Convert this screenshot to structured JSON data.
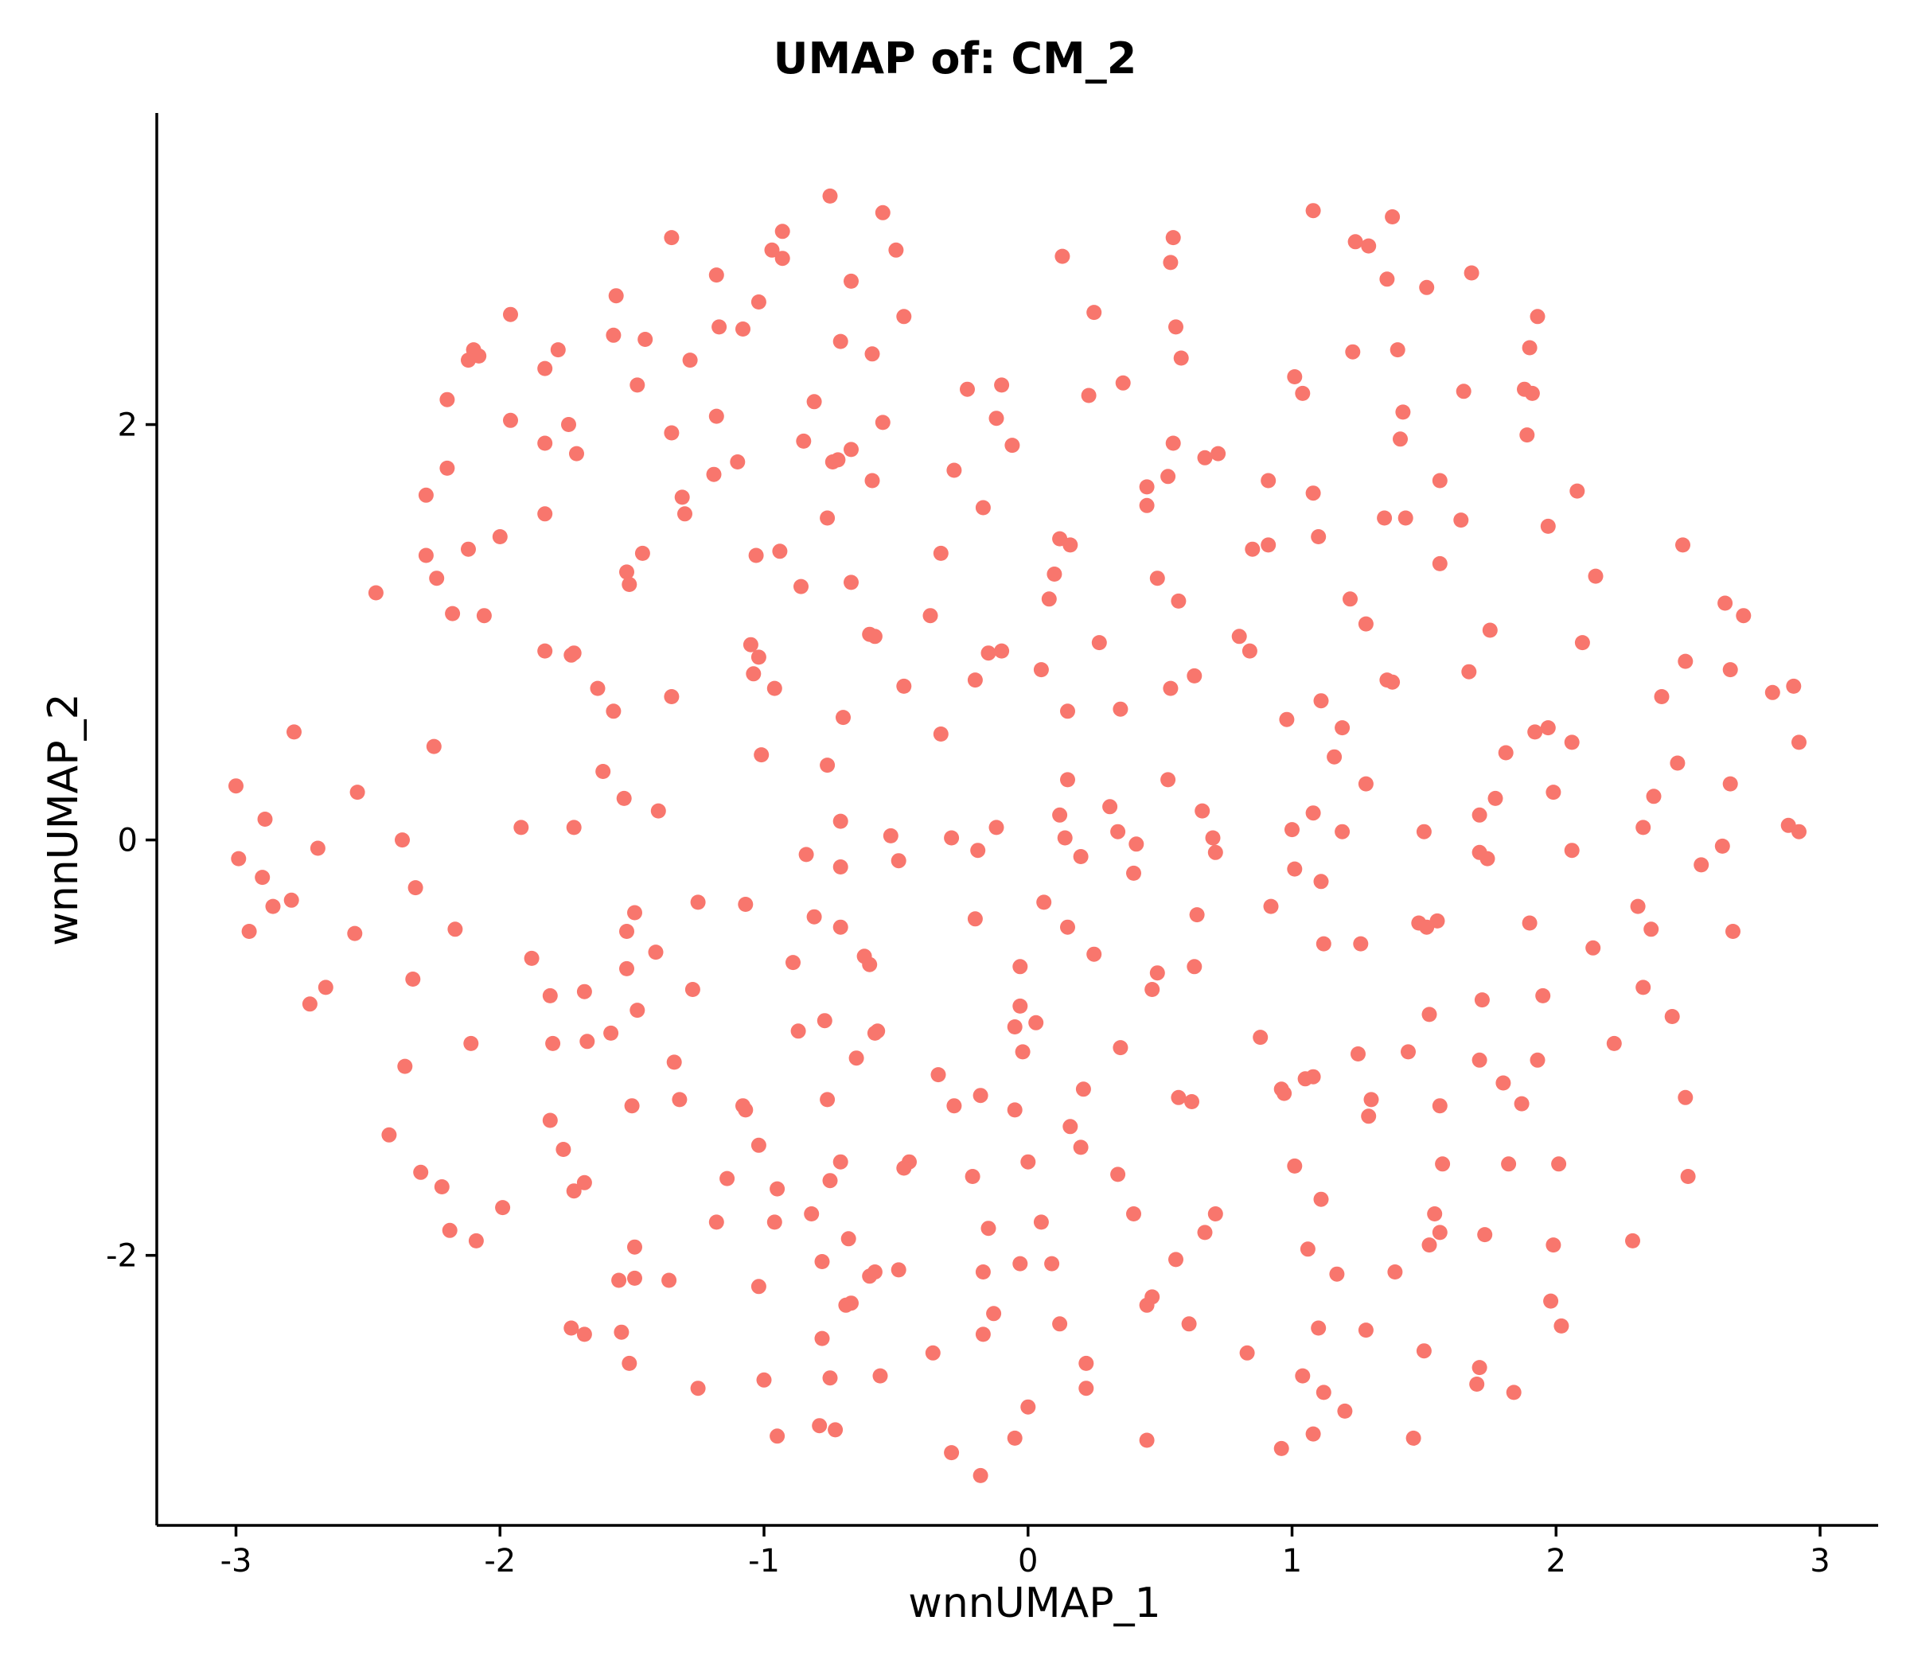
{
  "chart_data": {
    "type": "scatter",
    "title": "UMAP of: CM_2",
    "xlabel": "wnnUMAP_1",
    "ylabel": "wnnUMAP_2",
    "xlim": [
      -3.3,
      3.22
    ],
    "ylim": [
      -3.3,
      3.5
    ],
    "xticks": [
      -3,
      -2,
      -1,
      0,
      1,
      2,
      3
    ],
    "yticks": [
      -2,
      0,
      2
    ],
    "point_color": "#F8766D",
    "grid": false,
    "legend": "none",
    "points": [
      [
        -0.75,
        3.1
      ],
      [
        -0.55,
        3.02
      ],
      [
        1.08,
        3.03
      ],
      [
        1.38,
        3.0
      ],
      [
        -0.93,
        2.93
      ],
      [
        -1.35,
        2.9
      ],
      [
        0.55,
        2.9
      ],
      [
        -0.97,
        2.84
      ],
      [
        -0.5,
        2.84
      ],
      [
        1.24,
        2.88
      ],
      [
        1.29,
        2.86
      ],
      [
        0.13,
        2.81
      ],
      [
        -0.93,
        2.8
      ],
      [
        0.54,
        2.78
      ],
      [
        1.68,
        2.73
      ],
      [
        -1.18,
        2.72
      ],
      [
        1.36,
        2.7
      ],
      [
        -0.67,
        2.69
      ],
      [
        1.51,
        2.66
      ],
      [
        -1.56,
        2.62
      ],
      [
        -1.02,
        2.59
      ],
      [
        0.25,
        2.54
      ],
      [
        -0.47,
        2.52
      ],
      [
        -1.96,
        2.53
      ],
      [
        1.93,
        2.52
      ],
      [
        -1.17,
        2.47
      ],
      [
        -1.08,
        2.46
      ],
      [
        0.56,
        2.47
      ],
      [
        -1.57,
        2.43
      ],
      [
        -1.45,
        2.41
      ],
      [
        -0.71,
        2.4
      ],
      [
        1.9,
        2.37
      ],
      [
        -1.78,
        2.36
      ],
      [
        -2.1,
        2.36
      ],
      [
        1.23,
        2.35
      ],
      [
        1.4,
        2.36
      ],
      [
        -0.59,
        2.34
      ],
      [
        -2.08,
        2.33
      ],
      [
        -2.12,
        2.31
      ],
      [
        0.58,
        2.32
      ],
      [
        -1.28,
        2.31
      ],
      [
        -1.83,
        2.27
      ],
      [
        0.36,
        2.2
      ],
      [
        1.01,
        2.23
      ],
      [
        -1.48,
        2.19
      ],
      [
        -0.1,
        2.19
      ],
      [
        -0.23,
        2.17
      ],
      [
        1.65,
        2.16
      ],
      [
        1.88,
        2.17
      ],
      [
        1.04,
        2.15
      ],
      [
        0.23,
        2.14
      ],
      [
        1.91,
        2.15
      ],
      [
        -2.2,
        2.12
      ],
      [
        -0.81,
        2.11
      ],
      [
        1.42,
        2.06
      ],
      [
        -1.18,
        2.04
      ],
      [
        -0.12,
        2.03
      ],
      [
        -1.96,
        2.02
      ],
      [
        -0.55,
        2.01
      ],
      [
        -1.74,
        2.0
      ],
      [
        -1.35,
        1.96
      ],
      [
        1.89,
        1.95
      ],
      [
        1.41,
        1.93
      ],
      [
        -1.83,
        1.91
      ],
      [
        -0.85,
        1.92
      ],
      [
        0.55,
        1.91
      ],
      [
        -0.06,
        1.9
      ],
      [
        -0.67,
        1.88
      ],
      [
        -1.71,
        1.86
      ],
      [
        0.72,
        1.86
      ],
      [
        0.67,
        1.84
      ],
      [
        -0.72,
        1.83
      ],
      [
        -0.74,
        1.82
      ],
      [
        -1.1,
        1.82
      ],
      [
        -2.2,
        1.79
      ],
      [
        -0.28,
        1.78
      ],
      [
        -1.19,
        1.76
      ],
      [
        0.53,
        1.75
      ],
      [
        -0.59,
        1.73
      ],
      [
        0.91,
        1.73
      ],
      [
        1.56,
        1.73
      ],
      [
        0.45,
        1.7
      ],
      [
        1.08,
        1.67
      ],
      [
        2.08,
        1.68
      ],
      [
        -2.28,
        1.66
      ],
      [
        -1.31,
        1.65
      ],
      [
        0.45,
        1.61
      ],
      [
        -0.17,
        1.6
      ],
      [
        -1.83,
        1.57
      ],
      [
        -1.3,
        1.57
      ],
      [
        -0.76,
        1.55
      ],
      [
        1.35,
        1.55
      ],
      [
        1.43,
        1.55
      ],
      [
        1.64,
        1.54
      ],
      [
        1.97,
        1.51
      ],
      [
        -2.0,
        1.46
      ],
      [
        1.1,
        1.46
      ],
      [
        0.12,
        1.45
      ],
      [
        0.16,
        1.42
      ],
      [
        0.91,
        1.42
      ],
      [
        2.48,
        1.42
      ],
      [
        0.85,
        1.4
      ],
      [
        -2.12,
        1.4
      ],
      [
        -0.94,
        1.39
      ],
      [
        -1.46,
        1.38
      ],
      [
        -2.28,
        1.37
      ],
      [
        -1.03,
        1.37
      ],
      [
        -0.33,
        1.38
      ],
      [
        1.56,
        1.33
      ],
      [
        -1.52,
        1.29
      ],
      [
        -2.24,
        1.26
      ],
      [
        0.1,
        1.28
      ],
      [
        0.49,
        1.26
      ],
      [
        -0.67,
        1.24
      ],
      [
        2.15,
        1.27
      ],
      [
        -1.51,
        1.23
      ],
      [
        -0.86,
        1.22
      ],
      [
        -2.47,
        1.19
      ],
      [
        1.22,
        1.16
      ],
      [
        0.08,
        1.16
      ],
      [
        0.57,
        1.15
      ],
      [
        2.64,
        1.14
      ],
      [
        -2.18,
        1.09
      ],
      [
        -2.06,
        1.08
      ],
      [
        -0.37,
        1.08
      ],
      [
        2.71,
        1.08
      ],
      [
        1.28,
        1.04
      ],
      [
        1.75,
        1.01
      ],
      [
        -0.6,
        0.99
      ],
      [
        -0.58,
        0.98
      ],
      [
        0.8,
        0.98
      ],
      [
        2.1,
        0.95
      ],
      [
        0.27,
        0.95
      ],
      [
        -1.05,
        0.94
      ],
      [
        -1.83,
        0.91
      ],
      [
        0.84,
        0.91
      ],
      [
        -1.72,
        0.9
      ],
      [
        -0.1,
        0.91
      ],
      [
        -0.15,
        0.9
      ],
      [
        -1.73,
        0.89
      ],
      [
        -1.02,
        0.88
      ],
      [
        2.49,
        0.86
      ],
      [
        0.05,
        0.82
      ],
      [
        2.66,
        0.82
      ],
      [
        -1.04,
        0.8
      ],
      [
        0.63,
        0.79
      ],
      [
        1.67,
        0.81
      ],
      [
        -0.2,
        0.77
      ],
      [
        1.36,
        0.77
      ],
      [
        1.38,
        0.76
      ],
      [
        -1.63,
        0.73
      ],
      [
        -0.96,
        0.73
      ],
      [
        -0.47,
        0.74
      ],
      [
        0.54,
        0.73
      ],
      [
        2.9,
        0.74
      ],
      [
        2.82,
        0.71
      ],
      [
        2.4,
        0.69
      ],
      [
        -1.35,
        0.69
      ],
      [
        1.11,
        0.67
      ],
      [
        -1.57,
        0.62
      ],
      [
        0.15,
        0.62
      ],
      [
        0.35,
        0.63
      ],
      [
        -0.7,
        0.59
      ],
      [
        0.98,
        0.58
      ],
      [
        1.19,
        0.54
      ],
      [
        1.97,
        0.54
      ],
      [
        1.92,
        0.52
      ],
      [
        -2.78,
        0.52
      ],
      [
        -0.33,
        0.51
      ],
      [
        2.06,
        0.47
      ],
      [
        2.92,
        0.47
      ],
      [
        -2.25,
        0.45
      ],
      [
        1.81,
        0.42
      ],
      [
        1.16,
        0.4
      ],
      [
        -1.01,
        0.41
      ],
      [
        -0.76,
        0.36
      ],
      [
        2.46,
        0.37
      ],
      [
        -1.61,
        0.33
      ],
      [
        0.15,
        0.29
      ],
      [
        0.53,
        0.29
      ],
      [
        1.28,
        0.27
      ],
      [
        2.66,
        0.27
      ],
      [
        -3.0,
        0.26
      ],
      [
        -2.54,
        0.23
      ],
      [
        1.99,
        0.23
      ],
      [
        -1.53,
        0.2
      ],
      [
        2.37,
        0.21
      ],
      [
        1.77,
        0.2
      ],
      [
        0.31,
        0.16
      ],
      [
        0.66,
        0.14
      ],
      [
        -1.4,
        0.14
      ],
      [
        1.08,
        0.13
      ],
      [
        0.12,
        0.12
      ],
      [
        1.71,
        0.12
      ],
      [
        -2.89,
        0.1
      ],
      [
        -0.71,
        0.09
      ],
      [
        -1.92,
        0.06
      ],
      [
        -1.72,
        0.06
      ],
      [
        1.0,
        0.05
      ],
      [
        -0.12,
        0.06
      ],
      [
        2.33,
        0.06
      ],
      [
        2.88,
        0.07
      ],
      [
        2.92,
        0.04
      ],
      [
        0.34,
        0.04
      ],
      [
        1.19,
        0.04
      ],
      [
        1.5,
        0.04
      ],
      [
        -0.52,
        0.02
      ],
      [
        -0.29,
        0.01
      ],
      [
        0.14,
        0.01
      ],
      [
        0.7,
        0.01
      ],
      [
        -2.37,
        0.0
      ],
      [
        0.41,
        -0.02
      ],
      [
        -2.69,
        -0.04
      ],
      [
        -0.19,
        -0.05
      ],
      [
        1.71,
        -0.06
      ],
      [
        2.06,
        -0.05
      ],
      [
        0.71,
        -0.06
      ],
      [
        -0.84,
        -0.07
      ],
      [
        0.2,
        -0.08
      ],
      [
        -2.99,
        -0.09
      ],
      [
        1.74,
        -0.09
      ],
      [
        -0.49,
        -0.1
      ],
      [
        2.55,
        -0.12
      ],
      [
        2.63,
        -0.03
      ],
      [
        1.01,
        -0.14
      ],
      [
        -0.71,
        -0.13
      ],
      [
        0.4,
        -0.16
      ],
      [
        -2.9,
        -0.18
      ],
      [
        1.11,
        -0.2
      ],
      [
        -2.32,
        -0.23
      ],
      [
        -2.79,
        -0.29
      ],
      [
        -1.25,
        -0.3
      ],
      [
        -1.07,
        -0.31
      ],
      [
        0.06,
        -0.3
      ],
      [
        -2.86,
        -0.32
      ],
      [
        2.31,
        -0.32
      ],
      [
        0.92,
        -0.32
      ],
      [
        -1.49,
        -0.35
      ],
      [
        -0.81,
        -0.37
      ],
      [
        0.64,
        -0.36
      ],
      [
        -0.2,
        -0.38
      ],
      [
        1.55,
        -0.39
      ],
      [
        1.48,
        -0.4
      ],
      [
        1.9,
        -0.4
      ],
      [
        -0.71,
        -0.42
      ],
      [
        1.51,
        -0.42
      ],
      [
        -2.95,
        -0.44
      ],
      [
        -2.17,
        -0.43
      ],
      [
        0.15,
        -0.42
      ],
      [
        -1.52,
        -0.44
      ],
      [
        2.36,
        -0.43
      ],
      [
        2.67,
        -0.44
      ],
      [
        -2.55,
        -0.45
      ],
      [
        1.12,
        -0.5
      ],
      [
        1.26,
        -0.5
      ],
      [
        2.14,
        -0.52
      ],
      [
        -1.41,
        -0.54
      ],
      [
        0.25,
        -0.55
      ],
      [
        -0.62,
        -0.56
      ],
      [
        -1.88,
        -0.57
      ],
      [
        -0.89,
        -0.59
      ],
      [
        -0.6,
        -0.6
      ],
      [
        -1.52,
        -0.62
      ],
      [
        -0.03,
        -0.61
      ],
      [
        0.63,
        -0.61
      ],
      [
        0.49,
        -0.64
      ],
      [
        -2.33,
        -0.67
      ],
      [
        -2.66,
        -0.71
      ],
      [
        -1.27,
        -0.72
      ],
      [
        -1.68,
        -0.73
      ],
      [
        0.47,
        -0.72
      ],
      [
        2.33,
        -0.71
      ],
      [
        -1.81,
        -0.75
      ],
      [
        1.95,
        -0.75
      ],
      [
        -2.72,
        -0.79
      ],
      [
        -0.03,
        -0.8
      ],
      [
        1.72,
        -0.77
      ],
      [
        -1.48,
        -0.82
      ],
      [
        1.52,
        -0.84
      ],
      [
        2.44,
        -0.85
      ],
      [
        -0.77,
        -0.87
      ],
      [
        0.03,
        -0.88
      ],
      [
        -0.05,
        -0.9
      ],
      [
        -0.87,
        -0.92
      ],
      [
        -0.57,
        -0.92
      ],
      [
        -0.58,
        -0.93
      ],
      [
        -1.58,
        -0.93
      ],
      [
        0.88,
        -0.95
      ],
      [
        -1.67,
        -0.97
      ],
      [
        -2.11,
        -0.98
      ],
      [
        -1.8,
        -0.98
      ],
      [
        2.22,
        -0.98
      ],
      [
        0.35,
        -1.0
      ],
      [
        -0.02,
        -1.02
      ],
      [
        1.44,
        -1.02
      ],
      [
        1.25,
        -1.03
      ],
      [
        -0.65,
        -1.05
      ],
      [
        1.71,
        -1.06
      ],
      [
        1.93,
        -1.06
      ],
      [
        -1.34,
        -1.07
      ],
      [
        -2.36,
        -1.09
      ],
      [
        -0.34,
        -1.13
      ],
      [
        1.05,
        -1.15
      ],
      [
        1.08,
        -1.14
      ],
      [
        1.8,
        -1.17
      ],
      [
        0.21,
        -1.2
      ],
      [
        0.96,
        -1.2
      ],
      [
        0.97,
        -1.22
      ],
      [
        -0.18,
        -1.23
      ],
      [
        0.57,
        -1.24
      ],
      [
        0.62,
        -1.26
      ],
      [
        -1.32,
        -1.25
      ],
      [
        -0.76,
        -1.25
      ],
      [
        1.87,
        -1.27
      ],
      [
        2.49,
        -1.24
      ],
      [
        1.3,
        -1.25
      ],
      [
        -1.07,
        -1.3
      ],
      [
        -1.08,
        -1.28
      ],
      [
        -1.5,
        -1.28
      ],
      [
        -0.28,
        -1.28
      ],
      [
        1.56,
        -1.28
      ],
      [
        -0.05,
        -1.3
      ],
      [
        1.29,
        -1.33
      ],
      [
        -1.81,
        -1.35
      ],
      [
        0.16,
        -1.38
      ],
      [
        -2.42,
        -1.42
      ],
      [
        -1.02,
        -1.47
      ],
      [
        0.2,
        -1.48
      ],
      [
        -1.76,
        -1.49
      ],
      [
        -0.71,
        -1.55
      ],
      [
        -0.45,
        -1.55
      ],
      [
        0.0,
        -1.55
      ],
      [
        1.57,
        -1.56
      ],
      [
        1.82,
        -1.56
      ],
      [
        2.01,
        -1.56
      ],
      [
        1.01,
        -1.57
      ],
      [
        -2.3,
        -1.6
      ],
      [
        -0.47,
        -1.58
      ],
      [
        0.34,
        -1.61
      ],
      [
        2.5,
        -1.62
      ],
      [
        -0.21,
        -1.62
      ],
      [
        -1.14,
        -1.63
      ],
      [
        -0.75,
        -1.64
      ],
      [
        -1.68,
        -1.65
      ],
      [
        -2.22,
        -1.67
      ],
      [
        -0.95,
        -1.68
      ],
      [
        -1.72,
        -1.69
      ],
      [
        1.11,
        -1.73
      ],
      [
        -1.99,
        -1.77
      ],
      [
        -0.82,
        -1.8
      ],
      [
        1.54,
        -1.8
      ],
      [
        0.4,
        -1.8
      ],
      [
        0.71,
        -1.8
      ],
      [
        -1.18,
        -1.84
      ],
      [
        -0.96,
        -1.84
      ],
      [
        0.05,
        -1.84
      ],
      [
        1.56,
        -1.89
      ],
      [
        1.73,
        -1.9
      ],
      [
        -0.15,
        -1.87
      ],
      [
        -2.19,
        -1.88
      ],
      [
        0.67,
        -1.89
      ],
      [
        -0.68,
        -1.92
      ],
      [
        -2.09,
        -1.93
      ],
      [
        2.29,
        -1.93
      ],
      [
        -1.49,
        -1.96
      ],
      [
        1.52,
        -1.95
      ],
      [
        1.99,
        -1.95
      ],
      [
        1.06,
        -1.97
      ],
      [
        0.56,
        -2.02
      ],
      [
        -0.78,
        -2.03
      ],
      [
        -0.03,
        -2.04
      ],
      [
        0.09,
        -2.04
      ],
      [
        -0.58,
        -2.08
      ],
      [
        -0.49,
        -2.07
      ],
      [
        -0.17,
        -2.08
      ],
      [
        1.39,
        -2.08
      ],
      [
        1.17,
        -2.09
      ],
      [
        -1.49,
        -2.11
      ],
      [
        -1.55,
        -2.12
      ],
      [
        -1.36,
        -2.12
      ],
      [
        -0.6,
        -2.1
      ],
      [
        -1.02,
        -2.15
      ],
      [
        0.47,
        -2.2
      ],
      [
        0.45,
        -2.24
      ],
      [
        -0.69,
        -2.24
      ],
      [
        -0.67,
        -2.23
      ],
      [
        1.98,
        -2.22
      ],
      [
        -0.13,
        -2.28
      ],
      [
        0.12,
        -2.33
      ],
      [
        0.61,
        -2.33
      ],
      [
        1.1,
        -2.35
      ],
      [
        -1.73,
        -2.35
      ],
      [
        1.28,
        -2.36
      ],
      [
        2.02,
        -2.34
      ],
      [
        -1.54,
        -2.37
      ],
      [
        -1.68,
        -2.38
      ],
      [
        -0.17,
        -2.38
      ],
      [
        -0.78,
        -2.4
      ],
      [
        -0.36,
        -2.47
      ],
      [
        0.83,
        -2.47
      ],
      [
        1.5,
        -2.46
      ],
      [
        -1.51,
        -2.52
      ],
      [
        0.22,
        -2.52
      ],
      [
        1.71,
        -2.54
      ],
      [
        1.04,
        -2.58
      ],
      [
        -0.56,
        -2.58
      ],
      [
        -1.0,
        -2.6
      ],
      [
        -1.25,
        -2.64
      ],
      [
        0.22,
        -2.64
      ],
      [
        1.12,
        -2.66
      ],
      [
        -0.75,
        -2.59
      ],
      [
        1.7,
        -2.62
      ],
      [
        1.84,
        -2.66
      ],
      [
        1.2,
        -2.75
      ],
      [
        0.0,
        -2.73
      ],
      [
        -0.79,
        -2.82
      ],
      [
        -0.73,
        -2.84
      ],
      [
        -0.95,
        -2.87
      ],
      [
        -0.05,
        -2.88
      ],
      [
        0.45,
        -2.89
      ],
      [
        1.46,
        -2.88
      ],
      [
        1.08,
        -2.86
      ],
      [
        0.96,
        -2.93
      ],
      [
        -0.29,
        -2.95
      ],
      [
        -0.18,
        -3.06
      ]
    ]
  }
}
